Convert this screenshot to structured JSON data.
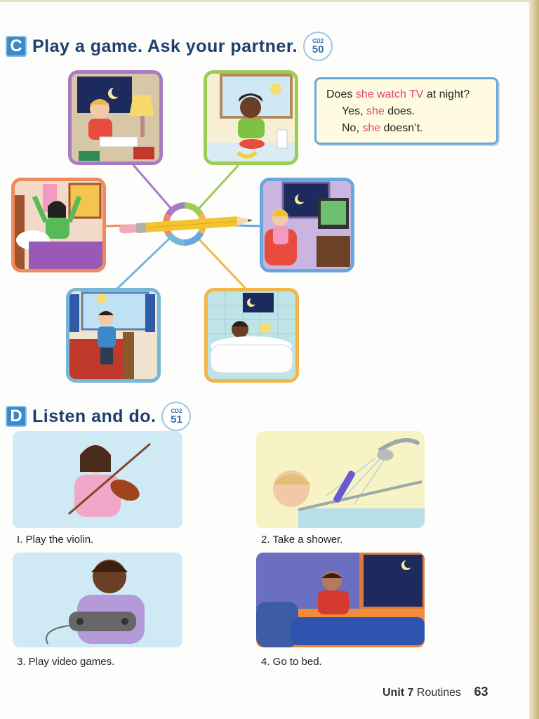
{
  "section_c": {
    "letter": "C",
    "title": "Play a game. Ask your partner.",
    "cd_label": "CD2",
    "cd_track": "50"
  },
  "dialogue": {
    "line1_a": "Does ",
    "line1_b": "she watch TV",
    "line1_c": " at night?",
    "line2_a": "Yes, ",
    "line2_b": "she",
    "line2_c": " does.",
    "line3_a": "No, ",
    "line3_b": "she",
    "line3_c": " doesn’t."
  },
  "section_d": {
    "letter": "D",
    "title": "Listen and do.",
    "cd_label": "CD2",
    "cd_track": "51"
  },
  "activities": [
    {
      "label": "I. Play the violin."
    },
    {
      "label": "2. Take a shower."
    },
    {
      "label": "3. Play video games."
    },
    {
      "label": "4. Go to bed."
    }
  ],
  "footer": {
    "unit": "Unit 7",
    "topic": "Routines",
    "page": "63"
  },
  "colors": {
    "accent": "#3c89c8",
    "highlight": "#e0457b",
    "heading": "#1e3f6e"
  }
}
